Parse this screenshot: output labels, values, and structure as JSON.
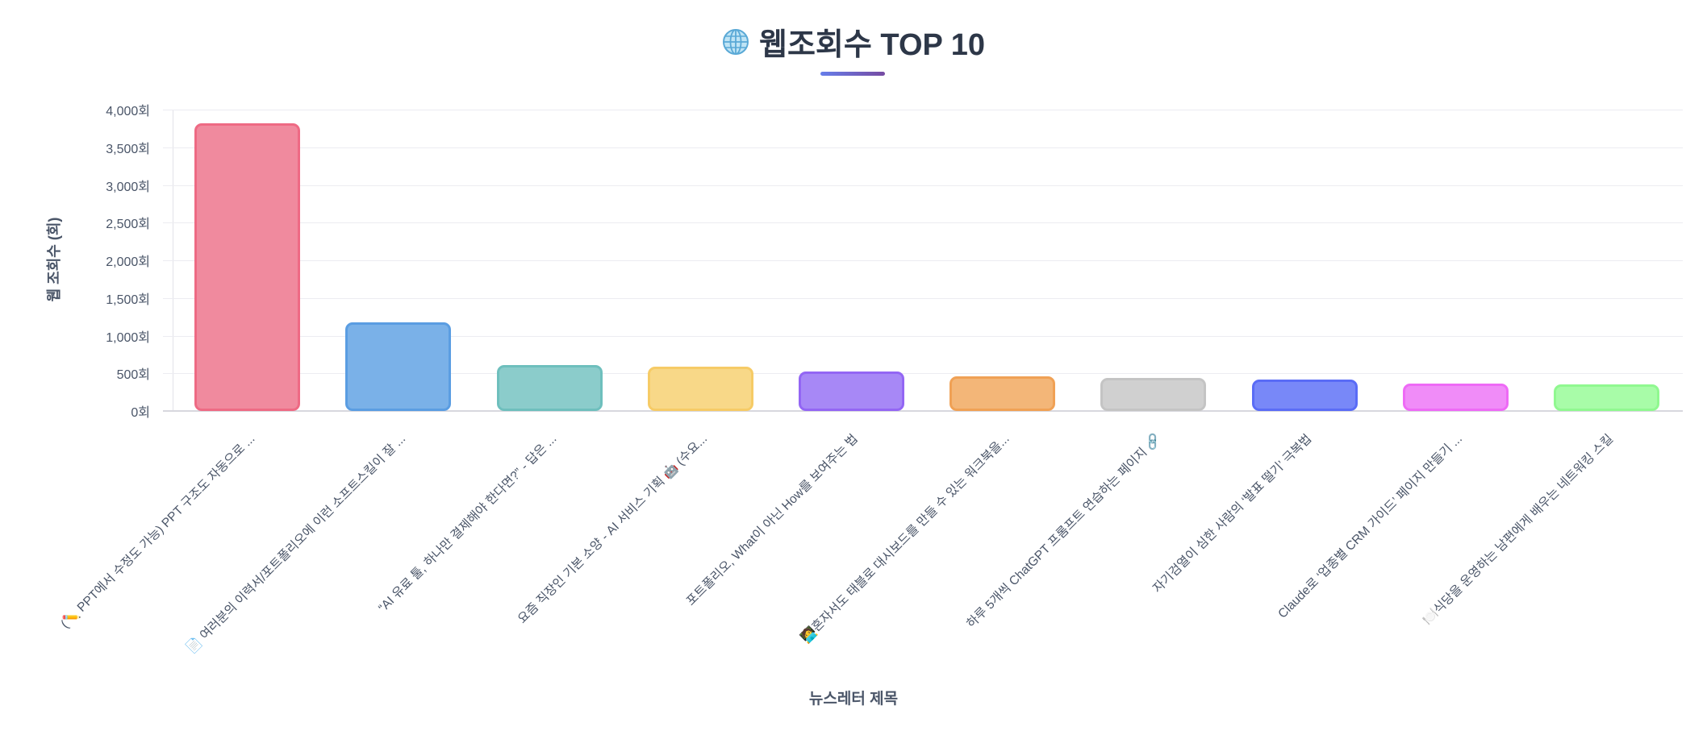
{
  "header": {
    "icon": "globe-icon",
    "title": "웹조회수 TOP 10",
    "underline_gradient": [
      "#667eea",
      "#764ba2"
    ]
  },
  "axes": {
    "ylabel": "웹 조회수 (회)",
    "xlabel": "뉴스레터 제목",
    "yticks": [
      "4,000회",
      "3,500회",
      "3,000회",
      "2,500회",
      "2,000회",
      "1,500회",
      "1,000회",
      "500회",
      "0회"
    ]
  },
  "chart_data": {
    "type": "bar",
    "title": "웹조회수 TOP 10",
    "xlabel": "뉴스레터 제목",
    "ylabel": "웹 조회수 (회)",
    "ylim": [
      0,
      4000
    ],
    "ytick_step": 500,
    "ytick_suffix": "회",
    "grid": true,
    "legend": "none",
    "categories": [
      "(✏️ PPT에서 수정도 가능) PPT 구조도 자동으로 ...",
      "📄 여러분의 이력서/포트폴리오에 이런 소프트스킬이 잘 ...",
      "“AI 유료 툴, 하나만 결제해야 한다면?” - 답은 ...",
      "요즘 직장인 기본 소양 - AI 서비스 기획 🤖 (수요...",
      "포트폴리오, What이 아닌 How를 보여주는 법",
      "🧑‍💻혼자서도 태블로 대시보드를 만들 수 있는 워크북을...",
      "하루 5개씩 ChatGPT 프롬프트 연습하는 페이지 🔗",
      "자기검열이 심한 사람의 ‘발표 떨기’ 극복법",
      "Claude로 ‘업종별 CRM 가이드’ 페이지 만들기 ...",
      "🍽️식당을 운영하는 남편에게 배우는 네트워킹 스킬"
    ],
    "values": [
      3820,
      1180,
      610,
      585,
      525,
      455,
      440,
      415,
      360,
      350
    ],
    "colors": {
      "fill": [
        "#f08a9e",
        "#7ab1e8",
        "#8bcccb",
        "#f8d888",
        "#a788f6",
        "#f3b678",
        "#d0d0d0",
        "#7888f8",
        "#f08cf8",
        "#a8fca8"
      ],
      "border": [
        "#ee6a84",
        "#5a9de2",
        "#6ebfbd",
        "#f6cb66",
        "#9366f4",
        "#f0a155",
        "#c4c4c4",
        "#5a6cf6",
        "#ee6af6",
        "#90f890"
      ]
    }
  }
}
